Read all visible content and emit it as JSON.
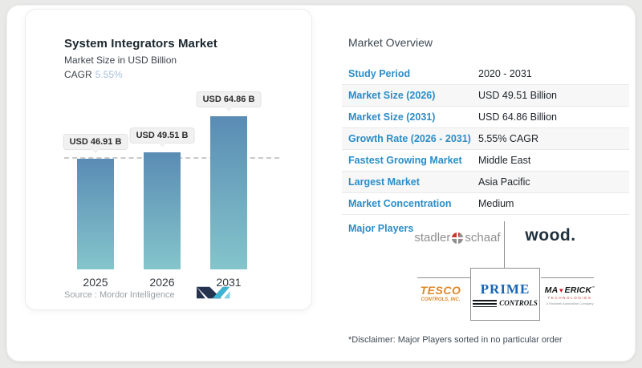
{
  "chart_card": {
    "title": "System Integrators Market",
    "subtitle": "Market Size in USD Billion",
    "cagr_label": "CAGR",
    "cagr_value": "5.55%",
    "source_label": "Source :  Mordor Intelligence"
  },
  "chart_data": {
    "type": "bar",
    "title": "System Integrators Market",
    "ylabel": "Market Size in USD Billion",
    "cagr": "5.55%",
    "categories": [
      "2025",
      "2026",
      "2031"
    ],
    "values": [
      46.91,
      49.51,
      64.86
    ],
    "bar_labels": [
      "USD 46.91 B",
      "USD 49.51 B",
      "USD 64.86 B"
    ],
    "ylim": [
      0,
      70
    ],
    "grid": false,
    "reference_line": {
      "style": "dashed",
      "at_value": 46.91
    },
    "bar_color_top": "#5a8cb4",
    "bar_color_bottom": "#84c5cb"
  },
  "overview": {
    "title": "Market Overview",
    "rows": [
      {
        "label": "Study Period",
        "value": "2020 - 2031"
      },
      {
        "label": "Market Size (2026)",
        "value": "USD 49.51 Billion"
      },
      {
        "label": "Market Size (2031)",
        "value": "USD 64.86 Billion"
      },
      {
        "label": "Growth Rate (2026 - 2031)",
        "value": "5.55% CAGR"
      },
      {
        "label": "Fastest Growing Market",
        "value": "Middle East"
      },
      {
        "label": "Largest Market",
        "value": "Asia Pacific"
      },
      {
        "label": "Market Concentration",
        "value": "Medium"
      }
    ],
    "major_players_label": "Major Players",
    "disclaimer": "*Disclaimer: Major Players sorted in no particular order"
  },
  "players": {
    "stadler": {
      "left": "stadler",
      "right": "schaaf"
    },
    "wood": {
      "text": "wood."
    },
    "tesco": {
      "line1": "TESCO",
      "line2": "CONTROLS, INC."
    },
    "prime": {
      "line1": "PRIME",
      "line2": "CONTROLS"
    },
    "maverick": {
      "pre": "MA",
      "triangle": "▼",
      "post": "ERICK",
      "tm": "™",
      "line2": "TECHNOLOGIES",
      "line3": "A Rockwell Automation Company"
    }
  },
  "colors": {
    "page_bg": "#e9e9e8",
    "accent_blue": "#2b8dc7",
    "cagr_light_blue": "#a7bfda",
    "bar_top": "#5a8cb4",
    "bar_bottom": "#84c5cb",
    "mordor_navy": "#26334f",
    "mordor_teal": "#3fb3d2"
  }
}
